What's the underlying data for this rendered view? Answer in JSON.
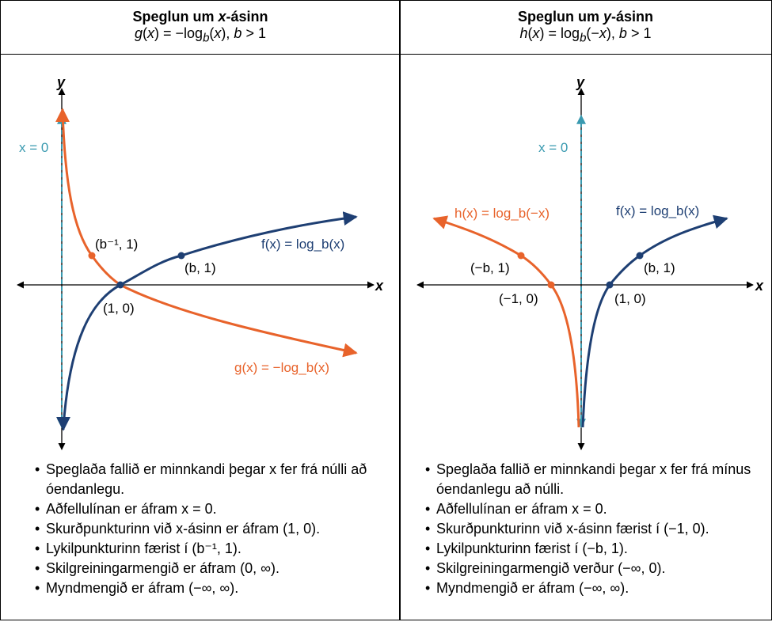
{
  "colors": {
    "orange": "#E8632B",
    "blue": "#1E3F73",
    "teal": "#3A9AB0",
    "black": "#000000"
  },
  "left": {
    "title": "Speglun um x-ásinn",
    "formula": "g(x) = −log_b(x), b > 1",
    "axis_x": "x",
    "axis_y": "y",
    "asymptote_label": "x = 0",
    "f_label": "f(x) = log_b(x)",
    "g_label": "g(x) = −log_b(x)",
    "pt_b_inv": "(b⁻¹, 1)",
    "pt_b": "(b, 1)",
    "pt_origin": "(1, 0)",
    "bullets": [
      "Speglaða fallið er minnkandi þegar x fer frá núlli að óendanlegu.",
      "Aðfellulínan er áfram x = 0.",
      "Skurðpunkturinn við x-ásinn er áfram (1, 0).",
      "Lykilpunkturinn færist í (b⁻¹, 1).",
      "Skilgreiningarmengið er áfram (0, ∞).",
      "Myndmengið er áfram (−∞, ∞)."
    ]
  },
  "right": {
    "title": "Speglun um y-ásinn",
    "formula": "h(x) = log_b(−x), b > 1",
    "axis_x": "x",
    "axis_y": "y",
    "asymptote_label": "x = 0",
    "f_label": "f(x) = log_b(x)",
    "h_label": "h(x) = log_b(−x)",
    "pt_neg_b": "(−b, 1)",
    "pt_b": "(b, 1)",
    "pt_neg_one": "(−1, 0)",
    "pt_one": "(1, 0)",
    "bullets": [
      "Speglaða fallið er minnkandi þegar x fer frá mínus óendanlegu að núlli.",
      "Aðfellulínan er áfram x = 0.",
      "Skurðpunkturinn við x-ásinn færist í (−1, 0).",
      "Lykilpunkturinn færist í (−b, 1).",
      "Skilgreiningarmengið verður (−∞, 0).",
      "Myndmengið er áfram (−∞, ∞)."
    ]
  }
}
